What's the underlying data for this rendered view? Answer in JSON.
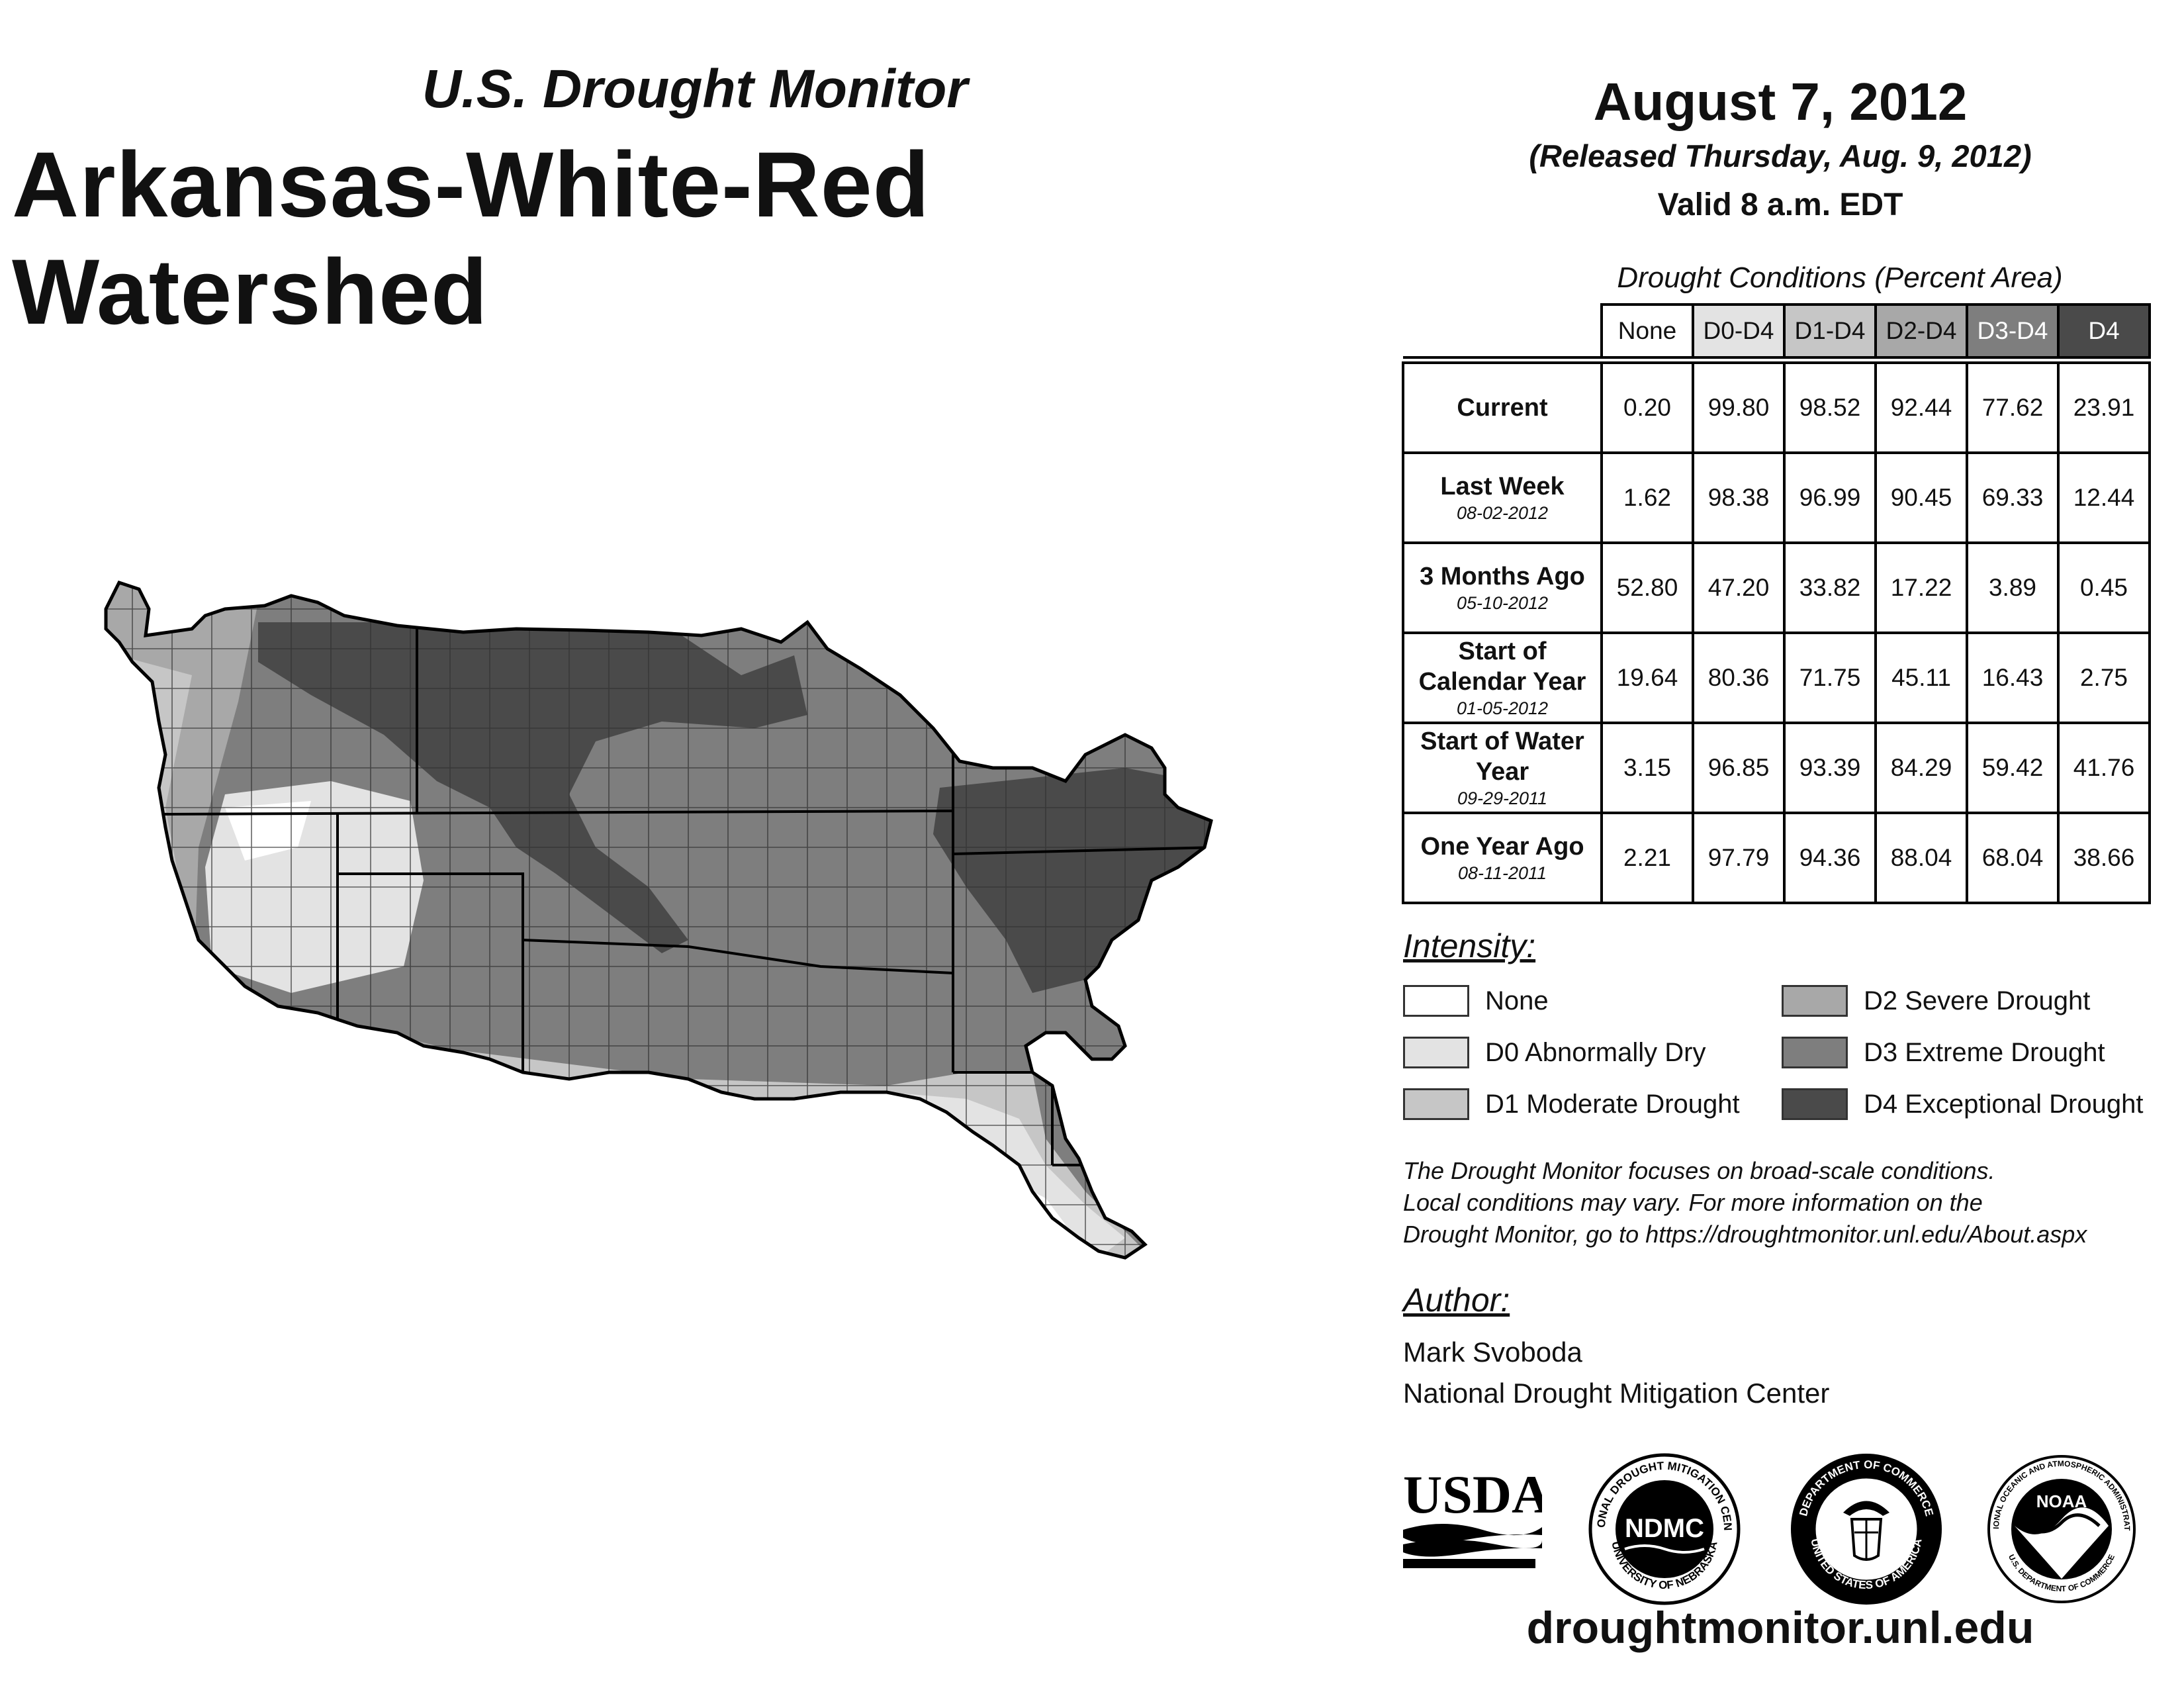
{
  "header": {
    "subtitle": "U.S. Drought Monitor",
    "title": "Arkansas-White-Red Watershed",
    "date": "August 7, 2012",
    "released": "(Released Thursday, Aug. 9, 2012)",
    "valid": "Valid 8 a.m. EDT"
  },
  "table": {
    "caption": "Drought Conditions (Percent Area)",
    "columns": [
      "None",
      "D0-D4",
      "D1-D4",
      "D2-D4",
      "D3-D4",
      "D4"
    ],
    "rows": [
      {
        "label": "Current",
        "date": "",
        "values": [
          "0.20",
          "99.80",
          "98.52",
          "92.44",
          "77.62",
          "23.91"
        ]
      },
      {
        "label": "Last Week",
        "date": "08-02-2012",
        "values": [
          "1.62",
          "98.38",
          "96.99",
          "90.45",
          "69.33",
          "12.44"
        ]
      },
      {
        "label": "3 Months Ago",
        "date": "05-10-2012",
        "values": [
          "52.80",
          "47.20",
          "33.82",
          "17.22",
          "3.89",
          "0.45"
        ]
      },
      {
        "label": "Start of Calendar Year",
        "date": "01-05-2012",
        "values": [
          "19.64",
          "80.36",
          "71.75",
          "45.11",
          "16.43",
          "2.75"
        ]
      },
      {
        "label": "Start of Water Year",
        "date": "09-29-2011",
        "values": [
          "3.15",
          "96.85",
          "93.39",
          "84.29",
          "59.42",
          "41.76"
        ]
      },
      {
        "label": "One Year Ago",
        "date": "08-11-2011",
        "values": [
          "2.21",
          "97.79",
          "94.36",
          "88.04",
          "68.04",
          "38.66"
        ]
      }
    ]
  },
  "legend": {
    "heading": "Intensity:",
    "items": [
      {
        "label": "None",
        "color": "#ffffff"
      },
      {
        "label": "D0 Abnormally Dry",
        "color": "#e3e3e3"
      },
      {
        "label": "D1 Moderate Drought",
        "color": "#c6c6c6"
      },
      {
        "label": "D2 Severe Drought",
        "color": "#a8a8a8"
      },
      {
        "label": "D3 Extreme Drought",
        "color": "#7e7e7e"
      },
      {
        "label": "D4 Exceptional Drought",
        "color": "#4a4a4a"
      }
    ]
  },
  "note": {
    "line1": "The Drought Monitor focuses on broad-scale conditions.",
    "line2": "Local conditions may vary. For more information on the",
    "line3": "Drought Monitor, go to https://droughtmonitor.unl.edu/About.aspx"
  },
  "author": {
    "heading": "Author:",
    "name": "Mark Svoboda",
    "org": "National Drought Mitigation Center"
  },
  "logos": {
    "usda": "USDA",
    "ndmc": "NDMC",
    "ndmc_ring_top": "NATIONAL DROUGHT MITIGATION CENTER",
    "ndmc_ring_bottom": "UNIVERSITY OF NEBRASKA",
    "doc_ring_top": "DEPARTMENT OF COMMERCE",
    "doc_ring_bottom": "UNITED STATES OF AMERICA",
    "noaa": "NOAA",
    "noaa_ring_top": "NATIONAL OCEANIC AND ATMOSPHERIC ADMINISTRATION",
    "noaa_ring_bottom": "U.S. DEPARTMENT OF COMMERCE"
  },
  "website": "droughtmonitor.unl.edu",
  "map": {
    "region": "Arkansas-White-Red Watershed",
    "fill_colors": {
      "none": "#ffffff",
      "d0": "#e3e3e3",
      "d1": "#c6c6c6",
      "d2": "#a8a8a8",
      "d3": "#7e7e7e",
      "d4": "#4a4a4a"
    }
  }
}
